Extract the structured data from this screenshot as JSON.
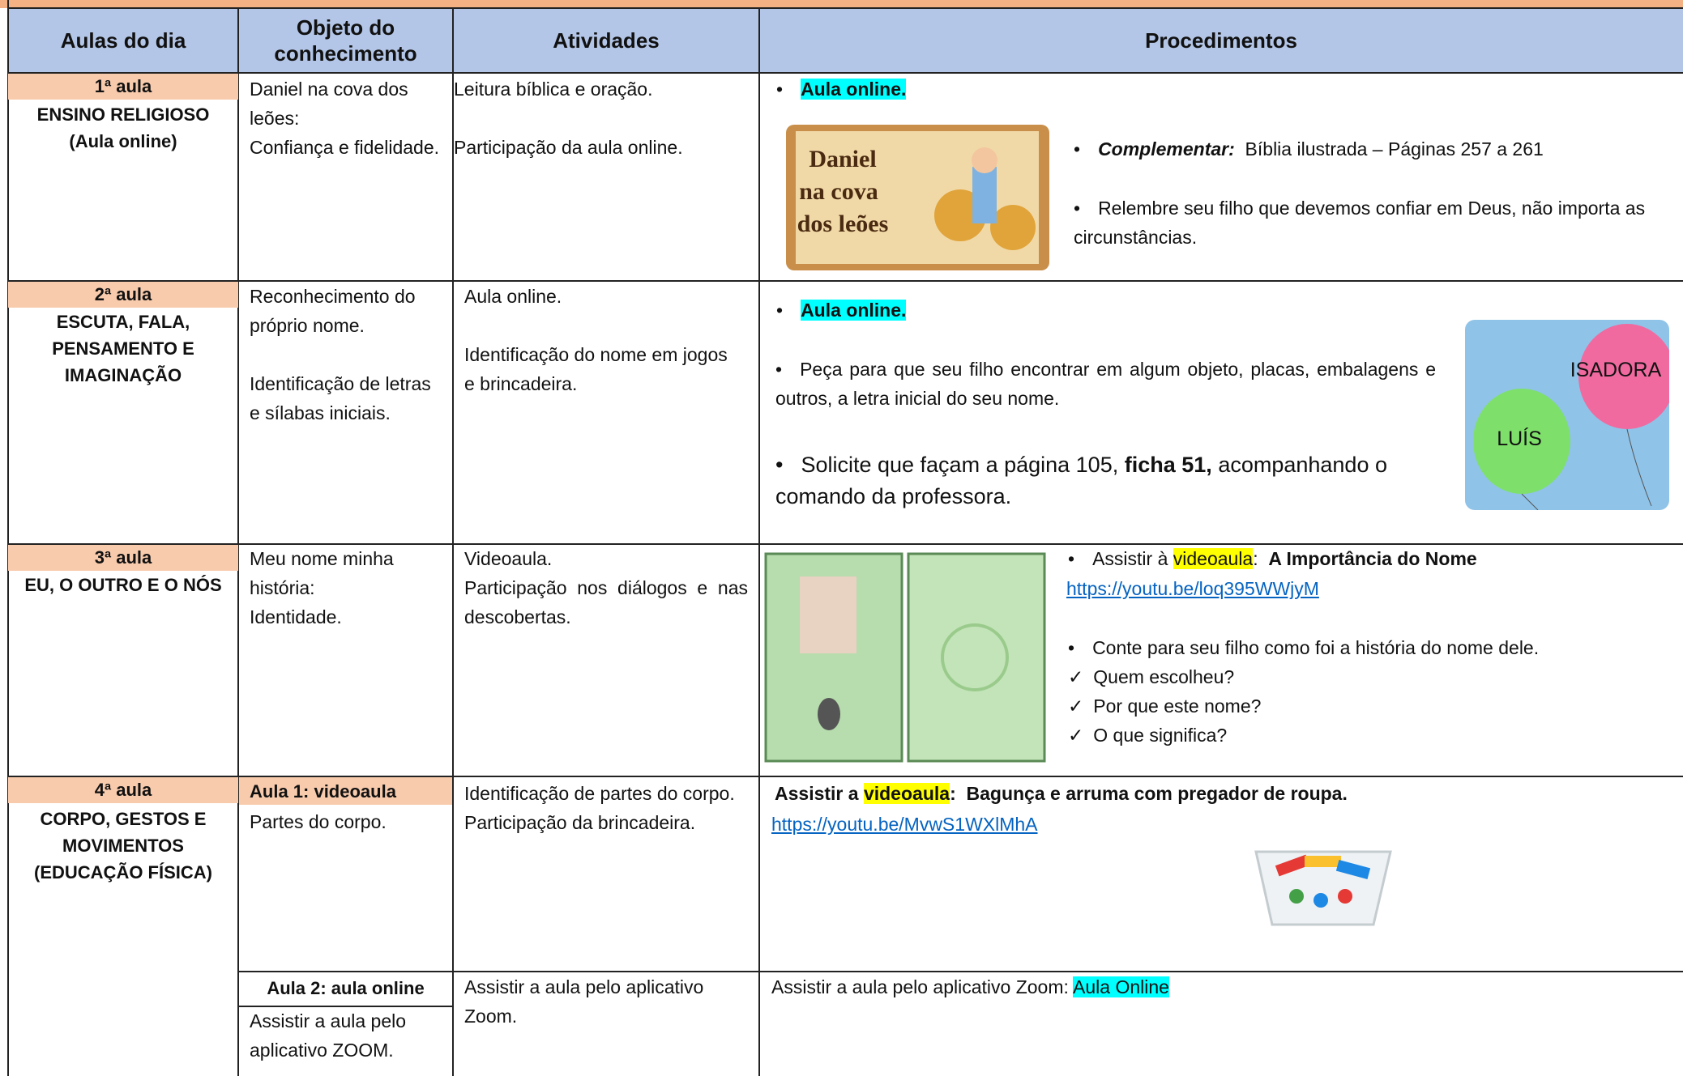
{
  "header": {
    "columns": [
      "Aulas do dia",
      "Objeto do conhecimento",
      "Atividades",
      "Procedimentos"
    ]
  },
  "rows": [
    {
      "aula": "1ª aula",
      "subject": [
        "ENSINO RELIGIOSO",
        "(Aula online)"
      ],
      "objeto": [
        "Daniel na cova dos leões:",
        "Confiança e fidelidade."
      ],
      "atividades": [
        "Leitura bíblica e oração.",
        "Participação da aula online."
      ],
      "procedimentos": {
        "bullet": "Aula online.",
        "image_text": [
          "Daniel",
          "na cova",
          "dos leões"
        ],
        "complementar_label": "Complementar:",
        "complementar_text": "Bíblia ilustrada – Páginas 257 a 261",
        "item": "Relembre seu filho que devemos confiar em Deus, não importa as circunstâncias."
      }
    },
    {
      "aula": "2ª aula",
      "subject": [
        "ESCUTA, FALA,",
        "PENSAMENTO E",
        "IMAGINAÇÃO"
      ],
      "objeto": [
        "Reconhecimento do próprio nome.",
        "Identificação de letras e sílabas iniciais."
      ],
      "atividades": [
        "Aula online.",
        "Identificação do nome em jogos e brincadeira."
      ],
      "procedimentos": {
        "bullet": "Aula online.",
        "item": "Peça para que seu filho encontrar em algum objeto, placas, embalagens e outros, a letra inicial do seu nome.",
        "solicite": [
          "Solicite que façam a página 105,",
          "ficha 51,",
          "acompanhando o comando da professora."
        ],
        "image_labels": [
          "ISADORA",
          "LUÍS"
        ]
      }
    },
    {
      "aula": "3ª aula",
      "subject": [
        "EU, O OUTRO E O NÓS"
      ],
      "objeto": [
        "Meu nome minha história:",
        "Identidade."
      ],
      "atividades": [
        "Videoaula.",
        "Participação nos diálogos e nas descobertas."
      ],
      "procedimentos": {
        "assistir": [
          "Assistir à",
          "videoaula",
          ":",
          "A Importância do Nome"
        ],
        "link": "https://youtu.be/loq395WWjyM",
        "item": "Conte para seu filho como foi a história do nome dele.",
        "checks": [
          "Quem escolheu?",
          "Por que este nome?",
          "O que significa?"
        ]
      }
    },
    {
      "aula": "4ª aula",
      "subject": [
        "CORPO, GESTOS E",
        "MOVIMENTOS",
        "(EDUCAÇÃO FÍSICA)"
      ],
      "parts": [
        {
          "label": "Aula 1: videoaula",
          "objeto": "Partes do corpo.",
          "atividades": [
            "Identificação de partes do corpo.",
            "Participação da brincadeira."
          ],
          "procedimentos": {
            "assistir": [
              "Assistir a",
              "videoaula",
              ":  Bagunça e arruma com pregador de roupa."
            ],
            "link": "https://youtu.be/MvwS1WXlMhA"
          }
        },
        {
          "label": "Aula 2: aula online",
          "objeto": "Assistir a aula pelo aplicativo ZOOM.",
          "atividades": [
            "Assistir a aula pelo aplicativo Zoom."
          ],
          "procedimentos": {
            "text": "Assistir a aula pelo aplicativo Zoom:",
            "highlight": "Aula Online"
          }
        }
      ]
    }
  ]
}
